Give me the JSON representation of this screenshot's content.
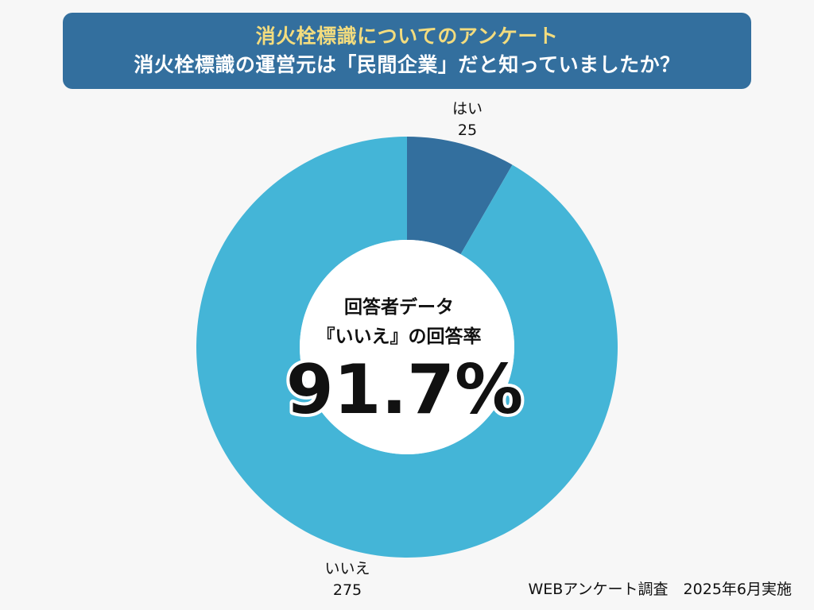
{
  "header": {
    "line1": "消火栓標識についてのアンケート",
    "line2": "消火栓標識の運営元は「民間企業」だと知っていましたか？"
  },
  "chart_data": {
    "type": "pie",
    "variant": "donut",
    "slices": [
      {
        "label": "はい",
        "value": 25,
        "color": "#336f9e"
      },
      {
        "label": "いいえ",
        "value": 275,
        "color": "#44b5d7"
      }
    ],
    "center": {
      "line1": "回答者データ",
      "line2": "『いいえ』の回答率",
      "value": "91.7%"
    }
  },
  "footer": {
    "source": "WEBアンケート調査　2025年6月実施"
  },
  "colors": {
    "banner": "#336f9e",
    "banner_accent_text": "#f3dc7e",
    "background": "#f7f7f7"
  }
}
